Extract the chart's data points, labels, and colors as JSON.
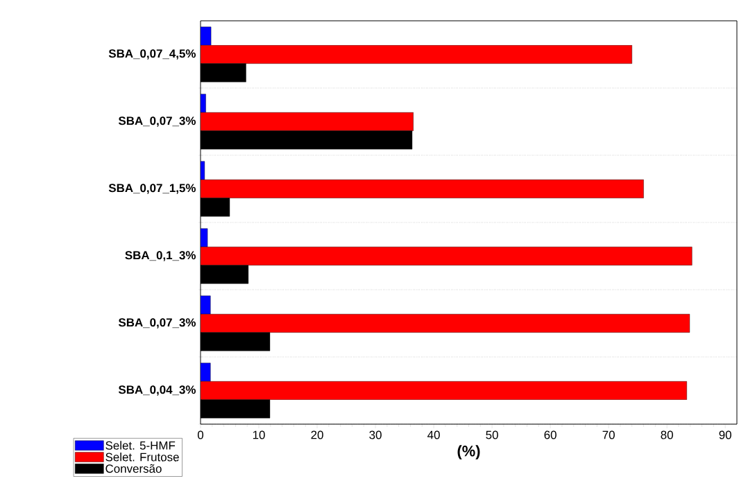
{
  "chart_data": {
    "type": "bar",
    "orientation": "horizontal",
    "xlabel": "(%)",
    "categories": [
      "SBA_0,07_4,5%",
      "SBA_0,07_3%",
      "SBA_0,07_1,5%",
      "SBA_0,1_3%",
      "SBA_0,07_3%",
      "SBA_0,04_3%"
    ],
    "series": [
      {
        "name": "Selet. 5-HMF",
        "color": "#0000ff",
        "values": [
          1.8,
          0.9,
          0.7,
          1.2,
          1.7,
          1.7
        ]
      },
      {
        "name": "Selet. Frutose",
        "color": "#ff0000",
        "values": [
          74.0,
          36.5,
          76.0,
          84.3,
          83.9,
          83.4
        ]
      },
      {
        "name": "Conversão",
        "color": "#000000",
        "values": [
          7.8,
          36.3,
          5.0,
          8.2,
          11.9,
          11.9
        ]
      }
    ],
    "xlim": [
      0,
      92
    ],
    "xticks": [
      0,
      10,
      20,
      30,
      40,
      50,
      60,
      70,
      80,
      90
    ],
    "grid": "y",
    "legend": "bottom left"
  }
}
